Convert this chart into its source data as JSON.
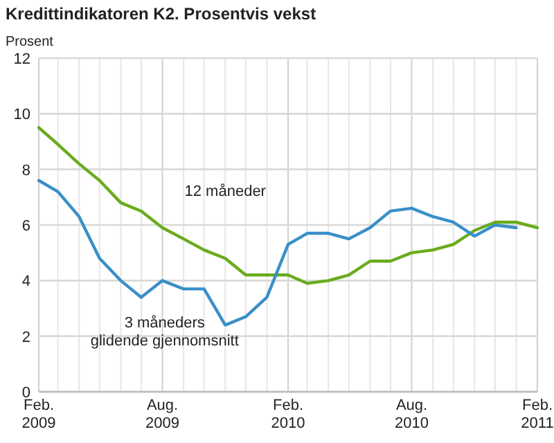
{
  "chart_data": {
    "type": "line",
    "title": "Kredittindikatoren K2. Prosentvis vekst",
    "ylabel": "Prosent",
    "x": [
      "2009-02",
      "2009-03",
      "2009-04",
      "2009-05",
      "2009-06",
      "2009-07",
      "2009-08",
      "2009-09",
      "2009-10",
      "2009-11",
      "2009-12",
      "2010-01",
      "2010-02",
      "2010-03",
      "2010-04",
      "2010-05",
      "2010-06",
      "2010-07",
      "2010-08",
      "2010-09",
      "2010-10",
      "2010-11",
      "2010-12",
      "2011-01",
      "2011-02"
    ],
    "series": [
      {
        "name": "12 måneder",
        "color": "#6aab1e",
        "values": [
          9.5,
          8.9,
          8.2,
          7.6,
          6.8,
          6.5,
          5.9,
          5.5,
          5.1,
          4.8,
          4.2,
          4.2,
          4.2,
          3.9,
          4.0,
          4.2,
          4.7,
          4.7,
          5.0,
          5.1,
          5.3,
          5.8,
          6.1,
          6.1,
          5.9
        ]
      },
      {
        "name": "3 måneders\nglidende gjennomsnitt",
        "color": "#3a8fc8",
        "values": [
          7.6,
          7.2,
          6.3,
          4.8,
          4.0,
          3.4,
          4.0,
          3.7,
          3.7,
          2.4,
          2.7,
          3.4,
          5.3,
          5.7,
          5.7,
          5.5,
          5.9,
          6.5,
          6.6,
          6.3,
          6.1,
          5.6,
          6.0,
          5.9,
          null
        ]
      }
    ],
    "xlim": [
      "2009-02",
      "2011-02"
    ],
    "xticks": [
      {
        "value": "2009-02",
        "label": "Feb.\n2009"
      },
      {
        "value": "2009-03",
        "label": null
      },
      {
        "value": "2009-04",
        "label": null
      },
      {
        "value": "2009-05",
        "label": null
      },
      {
        "value": "2009-06",
        "label": null
      },
      {
        "value": "2009-07",
        "label": null
      },
      {
        "value": "2009-08",
        "label": "Aug.\n2009"
      },
      {
        "value": "2009-09",
        "label": null
      },
      {
        "value": "2009-10",
        "label": null
      },
      {
        "value": "2009-11",
        "label": null
      },
      {
        "value": "2009-12",
        "label": null
      },
      {
        "value": "2010-01",
        "label": null
      },
      {
        "value": "2010-02",
        "label": "Feb.\n2010"
      },
      {
        "value": "2010-03",
        "label": null
      },
      {
        "value": "2010-04",
        "label": null
      },
      {
        "value": "2010-05",
        "label": null
      },
      {
        "value": "2010-06",
        "label": null
      },
      {
        "value": "2010-07",
        "label": null
      },
      {
        "value": "2010-08",
        "label": "Aug.\n2010"
      },
      {
        "value": "2010-09",
        "label": null
      },
      {
        "value": "2010-10",
        "label": null
      },
      {
        "value": "2010-11",
        "label": null
      },
      {
        "value": "2010-12",
        "label": null
      },
      {
        "value": "2011-01",
        "label": null
      },
      {
        "value": "2011-02",
        "label": "Feb.\n2011"
      }
    ],
    "ylim": [
      0,
      12
    ],
    "yticks": [
      0,
      2,
      4,
      6,
      8,
      10,
      12
    ],
    "grid": true,
    "marker": "none",
    "line_style": "solid"
  }
}
